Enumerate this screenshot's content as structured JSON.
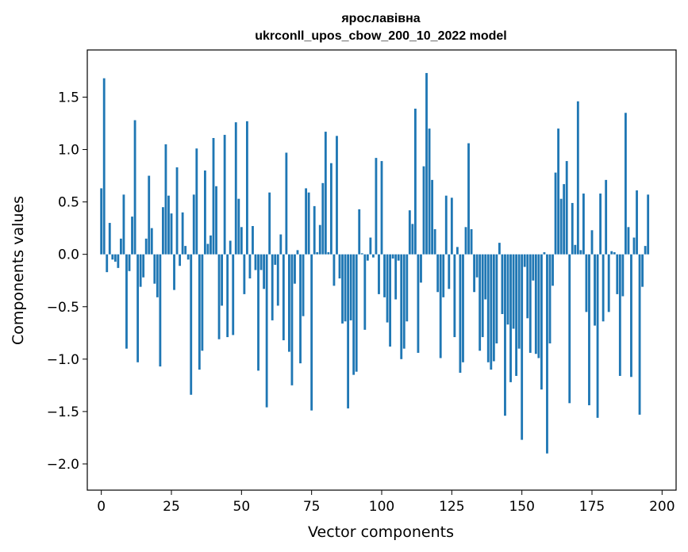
{
  "chart_data": {
    "type": "bar",
    "title": "ярославівна",
    "subtitle": "ukrconll_upos_cbow_200_10_2022 model",
    "xlabel": "Vector components",
    "ylabel": "Components values",
    "xlim": [
      -5,
      205
    ],
    "ylim": [
      -2.25,
      1.95
    ],
    "xticks": [
      0,
      25,
      50,
      75,
      100,
      125,
      150,
      175,
      200
    ],
    "yticks": [
      -2.0,
      -1.5,
      -1.0,
      -0.5,
      0.0,
      0.5,
      1.0,
      1.5
    ],
    "ytick_labels": [
      "−2.0",
      "−1.5",
      "−1.0",
      "−0.5",
      "0.0",
      "0.5",
      "1.0",
      "1.5"
    ],
    "bar_color": "#1f77b4",
    "values": [
      0.63,
      1.68,
      -0.17,
      0.3,
      -0.05,
      -0.07,
      -0.13,
      0.15,
      0.57,
      -0.9,
      -0.16,
      0.36,
      1.28,
      -1.03,
      -0.31,
      -0.22,
      0.15,
      0.75,
      0.25,
      -0.28,
      -0.41,
      -1.07,
      0.45,
      1.05,
      0.56,
      0.39,
      -0.34,
      0.83,
      -0.11,
      0.4,
      0.08,
      -0.05,
      -1.34,
      0.57,
      1.01,
      -1.1,
      -0.92,
      0.8,
      0.1,
      0.18,
      1.11,
      0.65,
      -0.81,
      -0.49,
      1.14,
      -0.79,
      0.13,
      -0.77,
      1.26,
      0.53,
      0.26,
      -0.38,
      1.27,
      -0.23,
      0.27,
      -0.15,
      -1.11,
      -0.15,
      -0.33,
      -1.46,
      0.59,
      -0.63,
      -0.1,
      -0.49,
      0.19,
      -0.82,
      0.97,
      -0.93,
      -1.25,
      -0.28,
      0.04,
      -1.04,
      -0.59,
      0.63,
      0.59,
      -1.49,
      0.46,
      0.02,
      0.28,
      0.68,
      1.17,
      0.02,
      0.87,
      -0.3,
      1.13,
      -0.23,
      -0.66,
      -0.64,
      -1.47,
      -0.63,
      -1.15,
      -1.12,
      0.43,
      0.01,
      -0.72,
      -0.06,
      0.16,
      -0.03,
      0.92,
      -0.38,
      0.89,
      -0.41,
      -0.65,
      -0.88,
      -0.04,
      -0.43,
      -0.06,
      -1.0,
      -0.9,
      -0.64,
      0.42,
      0.29,
      1.39,
      -0.94,
      -0.27,
      0.84,
      1.73,
      1.2,
      0.71,
      0.24,
      -0.36,
      -0.99,
      -0.41,
      0.56,
      -0.33,
      0.54,
      -0.79,
      0.07,
      -1.13,
      -1.03,
      0.26,
      1.06,
      0.24,
      -0.36,
      -0.22,
      -0.92,
      -0.79,
      -0.43,
      -1.03,
      -1.1,
      -1.02,
      -0.85,
      0.11,
      -0.57,
      -1.54,
      -0.67,
      -1.22,
      -0.71,
      -1.16,
      -0.9,
      -1.77,
      -0.12,
      -0.61,
      -0.94,
      -0.25,
      -0.95,
      -0.99,
      -1.29,
      0.02,
      -1.9,
      -0.85,
      -0.3,
      0.78,
      1.2,
      0.53,
      0.67,
      0.89,
      -1.42,
      0.49,
      0.09,
      1.46,
      0.04,
      0.58,
      -0.55,
      -1.44,
      0.23,
      -0.68,
      -1.56,
      0.58,
      -0.64,
      0.71,
      -0.55,
      0.03,
      0.02,
      -0.38,
      -1.16,
      -0.4,
      1.35,
      0.26,
      -1.17,
      0.16,
      0.61,
      -1.53,
      -0.31,
      0.08,
      0.57
    ]
  }
}
